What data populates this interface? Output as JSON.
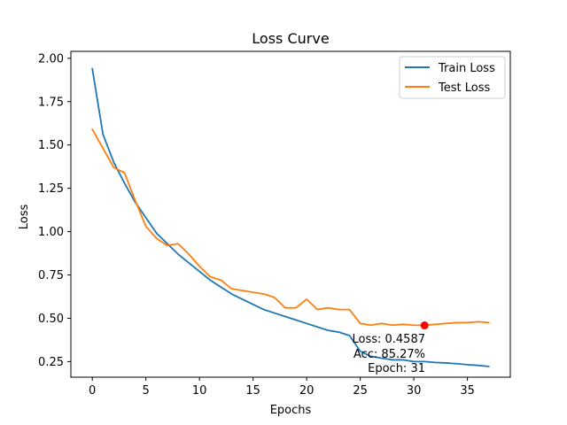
{
  "chart_data": {
    "type": "line",
    "title": "Loss Curve",
    "xlabel": "Epochs",
    "ylabel": "Loss",
    "xlim": [
      -2,
      39
    ],
    "ylim": [
      0.16,
      2.04
    ],
    "xticks": [
      0,
      5,
      10,
      15,
      20,
      25,
      30,
      35
    ],
    "yticks": [
      0.25,
      0.5,
      0.75,
      1.0,
      1.25,
      1.5,
      1.75,
      2.0
    ],
    "ytick_labels": [
      "0.25",
      "0.50",
      "0.75",
      "1.00",
      "1.25",
      "1.50",
      "1.75",
      "2.00"
    ],
    "grid": false,
    "legend_position": "top-right",
    "x": [
      0,
      1,
      2,
      3,
      4,
      5,
      6,
      7,
      8,
      9,
      10,
      11,
      12,
      13,
      14,
      15,
      16,
      17,
      18,
      19,
      20,
      21,
      22,
      23,
      24,
      25,
      26,
      27,
      28,
      29,
      30,
      31,
      32,
      33,
      34,
      35,
      36,
      37
    ],
    "series": [
      {
        "name": "Train Loss",
        "color": "#1f77b4",
        "values": [
          1.94,
          1.56,
          1.4,
          1.28,
          1.17,
          1.08,
          0.99,
          0.93,
          0.87,
          0.82,
          0.77,
          0.72,
          0.68,
          0.64,
          0.61,
          0.58,
          0.55,
          0.53,
          0.51,
          0.49,
          0.47,
          0.45,
          0.43,
          0.42,
          0.4,
          0.31,
          0.28,
          0.27,
          0.26,
          0.26,
          0.25,
          0.25,
          0.245,
          0.242,
          0.238,
          0.232,
          0.228,
          0.222
        ]
      },
      {
        "name": "Test Loss",
        "color": "#ff7f0e",
        "values": [
          1.59,
          1.48,
          1.37,
          1.34,
          1.18,
          1.03,
          0.96,
          0.92,
          0.93,
          0.87,
          0.8,
          0.74,
          0.72,
          0.67,
          0.66,
          0.65,
          0.64,
          0.62,
          0.56,
          0.56,
          0.61,
          0.55,
          0.56,
          0.55,
          0.55,
          0.47,
          0.46,
          0.47,
          0.46,
          0.465,
          0.46,
          0.4587,
          0.465,
          0.47,
          0.475,
          0.475,
          0.48,
          0.475
        ]
      }
    ],
    "highlight_point": {
      "x": 31,
      "y": 0.4587,
      "color": "#ff0000"
    },
    "annotation": {
      "lines": [
        "Loss: 0.4587",
        "Acc: 85.27%",
        "Epoch: 31"
      ]
    }
  }
}
